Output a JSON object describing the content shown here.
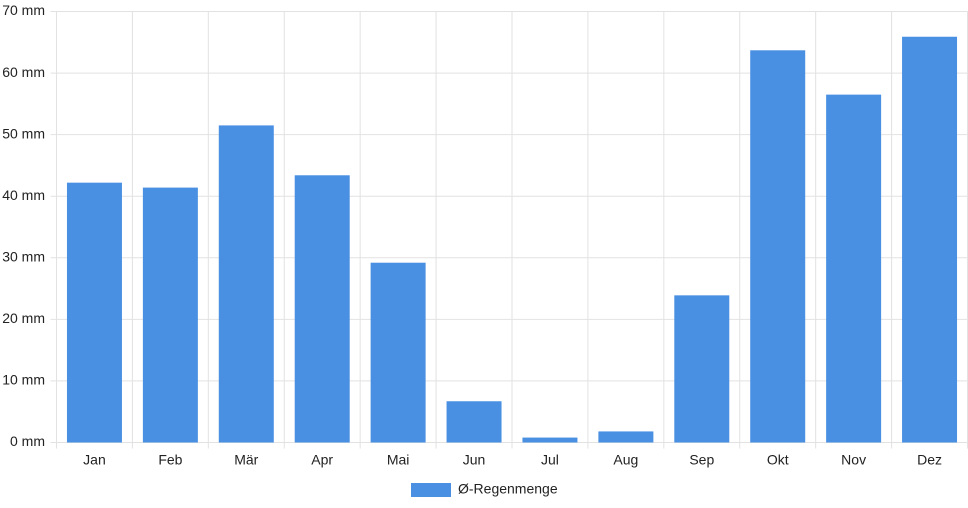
{
  "chart_data": {
    "type": "bar",
    "categories": [
      "Jan",
      "Feb",
      "Mär",
      "Apr",
      "Mai",
      "Jun",
      "Jul",
      "Aug",
      "Sep",
      "Okt",
      "Nov",
      "Dez"
    ],
    "series": [
      {
        "name": "Ø-Regenmenge",
        "color": "#4a90e2",
        "values": [
          42.2,
          41.4,
          51.5,
          43.4,
          29.2,
          6.7,
          0.8,
          1.8,
          23.9,
          63.7,
          56.5,
          65.9
        ]
      }
    ],
    "ylim": [
      0,
      70
    ],
    "yticks": [
      {
        "value": 0,
        "label": "0 mm"
      },
      {
        "value": 10,
        "label": "10 mm"
      },
      {
        "value": 20,
        "label": "20 mm"
      },
      {
        "value": 30,
        "label": "30 mm"
      },
      {
        "value": 40,
        "label": "40 mm"
      },
      {
        "value": 50,
        "label": "50 mm"
      },
      {
        "value": 60,
        "label": "60 mm"
      },
      {
        "value": 70,
        "label": "70 mm"
      }
    ],
    "grid": true,
    "legend": "bottom"
  }
}
